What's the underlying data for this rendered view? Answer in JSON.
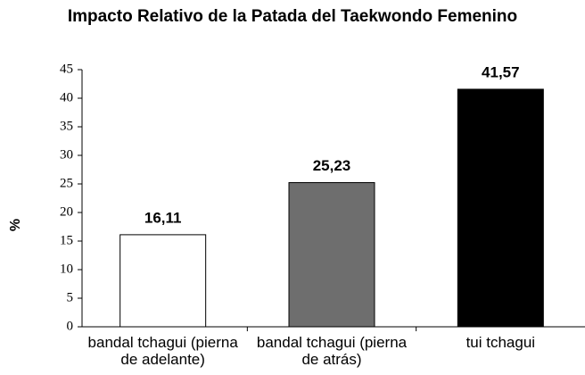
{
  "chart_data": {
    "type": "bar",
    "title": "Impacto Relativo de la Patada del Taekwondo Femenino",
    "y_label": "%",
    "categories": [
      "bandal tchagui (pierna de adelante)",
      "bandal tchagui (pierna de atrás)",
      "tui tchagui"
    ],
    "values": [
      16.11,
      25.23,
      41.57
    ],
    "value_labels": [
      "16,11",
      "25,23",
      "41,57"
    ],
    "colors": [
      "#ffffff",
      "#6e6e6e",
      "#000000"
    ],
    "ylim": [
      0,
      45
    ],
    "yticks": [
      0,
      5,
      10,
      15,
      20,
      25,
      30,
      35,
      40,
      45
    ],
    "grid": false
  }
}
